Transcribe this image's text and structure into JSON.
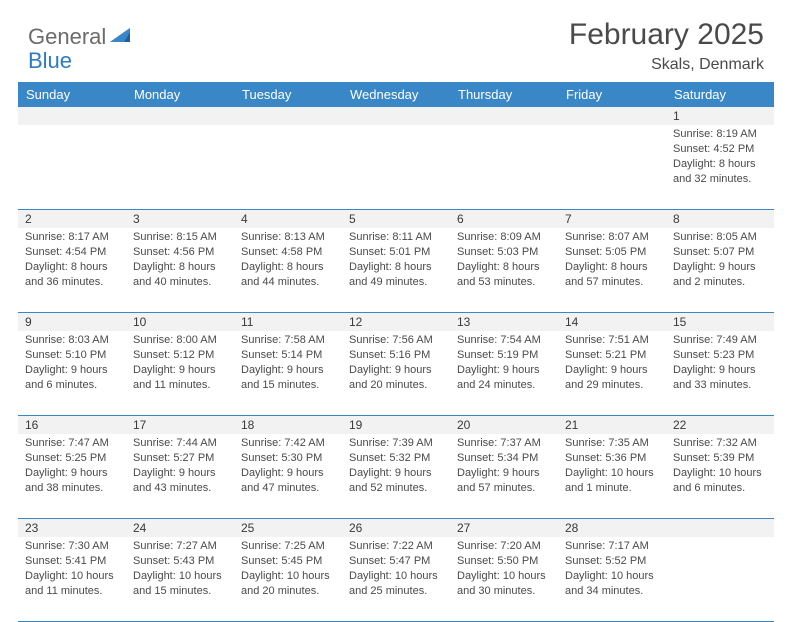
{
  "logo": {
    "part1": "General",
    "part2": "Blue"
  },
  "title": "February 2025",
  "subtitle": "Skals, Denmark",
  "colors": {
    "header_bg": "#3a87c8",
    "header_text": "#ffffff",
    "row_divider": "#3a87c8",
    "daynum_bg": "#f2f2f2",
    "body_text": "#4a4a4a",
    "logo_gray": "#6b6b6b",
    "logo_blue": "#2b7cc4"
  },
  "typography": {
    "title_fontsize": 30,
    "subtitle_fontsize": 16,
    "dayheader_fontsize": 13,
    "daynum_fontsize": 12,
    "cell_fontsize": 11
  },
  "day_names": [
    "Sunday",
    "Monday",
    "Tuesday",
    "Wednesday",
    "Thursday",
    "Friday",
    "Saturday"
  ],
  "weeks": [
    [
      null,
      null,
      null,
      null,
      null,
      null,
      {
        "n": "1",
        "sr": "Sunrise: 8:19 AM",
        "ss": "Sunset: 4:52 PM",
        "d1": "Daylight: 8 hours",
        "d2": "and 32 minutes."
      }
    ],
    [
      {
        "n": "2",
        "sr": "Sunrise: 8:17 AM",
        "ss": "Sunset: 4:54 PM",
        "d1": "Daylight: 8 hours",
        "d2": "and 36 minutes."
      },
      {
        "n": "3",
        "sr": "Sunrise: 8:15 AM",
        "ss": "Sunset: 4:56 PM",
        "d1": "Daylight: 8 hours",
        "d2": "and 40 minutes."
      },
      {
        "n": "4",
        "sr": "Sunrise: 8:13 AM",
        "ss": "Sunset: 4:58 PM",
        "d1": "Daylight: 8 hours",
        "d2": "and 44 minutes."
      },
      {
        "n": "5",
        "sr": "Sunrise: 8:11 AM",
        "ss": "Sunset: 5:01 PM",
        "d1": "Daylight: 8 hours",
        "d2": "and 49 minutes."
      },
      {
        "n": "6",
        "sr": "Sunrise: 8:09 AM",
        "ss": "Sunset: 5:03 PM",
        "d1": "Daylight: 8 hours",
        "d2": "and 53 minutes."
      },
      {
        "n": "7",
        "sr": "Sunrise: 8:07 AM",
        "ss": "Sunset: 5:05 PM",
        "d1": "Daylight: 8 hours",
        "d2": "and 57 minutes."
      },
      {
        "n": "8",
        "sr": "Sunrise: 8:05 AM",
        "ss": "Sunset: 5:07 PM",
        "d1": "Daylight: 9 hours",
        "d2": "and 2 minutes."
      }
    ],
    [
      {
        "n": "9",
        "sr": "Sunrise: 8:03 AM",
        "ss": "Sunset: 5:10 PM",
        "d1": "Daylight: 9 hours",
        "d2": "and 6 minutes."
      },
      {
        "n": "10",
        "sr": "Sunrise: 8:00 AM",
        "ss": "Sunset: 5:12 PM",
        "d1": "Daylight: 9 hours",
        "d2": "and 11 minutes."
      },
      {
        "n": "11",
        "sr": "Sunrise: 7:58 AM",
        "ss": "Sunset: 5:14 PM",
        "d1": "Daylight: 9 hours",
        "d2": "and 15 minutes."
      },
      {
        "n": "12",
        "sr": "Sunrise: 7:56 AM",
        "ss": "Sunset: 5:16 PM",
        "d1": "Daylight: 9 hours",
        "d2": "and 20 minutes."
      },
      {
        "n": "13",
        "sr": "Sunrise: 7:54 AM",
        "ss": "Sunset: 5:19 PM",
        "d1": "Daylight: 9 hours",
        "d2": "and 24 minutes."
      },
      {
        "n": "14",
        "sr": "Sunrise: 7:51 AM",
        "ss": "Sunset: 5:21 PM",
        "d1": "Daylight: 9 hours",
        "d2": "and 29 minutes."
      },
      {
        "n": "15",
        "sr": "Sunrise: 7:49 AM",
        "ss": "Sunset: 5:23 PM",
        "d1": "Daylight: 9 hours",
        "d2": "and 33 minutes."
      }
    ],
    [
      {
        "n": "16",
        "sr": "Sunrise: 7:47 AM",
        "ss": "Sunset: 5:25 PM",
        "d1": "Daylight: 9 hours",
        "d2": "and 38 minutes."
      },
      {
        "n": "17",
        "sr": "Sunrise: 7:44 AM",
        "ss": "Sunset: 5:27 PM",
        "d1": "Daylight: 9 hours",
        "d2": "and 43 minutes."
      },
      {
        "n": "18",
        "sr": "Sunrise: 7:42 AM",
        "ss": "Sunset: 5:30 PM",
        "d1": "Daylight: 9 hours",
        "d2": "and 47 minutes."
      },
      {
        "n": "19",
        "sr": "Sunrise: 7:39 AM",
        "ss": "Sunset: 5:32 PM",
        "d1": "Daylight: 9 hours",
        "d2": "and 52 minutes."
      },
      {
        "n": "20",
        "sr": "Sunrise: 7:37 AM",
        "ss": "Sunset: 5:34 PM",
        "d1": "Daylight: 9 hours",
        "d2": "and 57 minutes."
      },
      {
        "n": "21",
        "sr": "Sunrise: 7:35 AM",
        "ss": "Sunset: 5:36 PM",
        "d1": "Daylight: 10 hours",
        "d2": "and 1 minute."
      },
      {
        "n": "22",
        "sr": "Sunrise: 7:32 AM",
        "ss": "Sunset: 5:39 PM",
        "d1": "Daylight: 10 hours",
        "d2": "and 6 minutes."
      }
    ],
    [
      {
        "n": "23",
        "sr": "Sunrise: 7:30 AM",
        "ss": "Sunset: 5:41 PM",
        "d1": "Daylight: 10 hours",
        "d2": "and 11 minutes."
      },
      {
        "n": "24",
        "sr": "Sunrise: 7:27 AM",
        "ss": "Sunset: 5:43 PM",
        "d1": "Daylight: 10 hours",
        "d2": "and 15 minutes."
      },
      {
        "n": "25",
        "sr": "Sunrise: 7:25 AM",
        "ss": "Sunset: 5:45 PM",
        "d1": "Daylight: 10 hours",
        "d2": "and 20 minutes."
      },
      {
        "n": "26",
        "sr": "Sunrise: 7:22 AM",
        "ss": "Sunset: 5:47 PM",
        "d1": "Daylight: 10 hours",
        "d2": "and 25 minutes."
      },
      {
        "n": "27",
        "sr": "Sunrise: 7:20 AM",
        "ss": "Sunset: 5:50 PM",
        "d1": "Daylight: 10 hours",
        "d2": "and 30 minutes."
      },
      {
        "n": "28",
        "sr": "Sunrise: 7:17 AM",
        "ss": "Sunset: 5:52 PM",
        "d1": "Daylight: 10 hours",
        "d2": "and 34 minutes."
      },
      null
    ]
  ]
}
